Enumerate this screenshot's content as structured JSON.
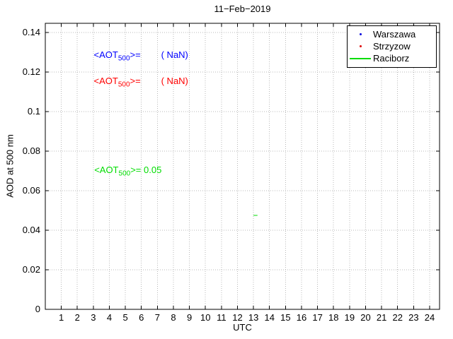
{
  "chart_data": {
    "type": "scatter",
    "title": "11−Feb−2019",
    "xlabel": "UTC",
    "ylabel": "AOD at 500 nm",
    "xlim": [
      0,
      24.62
    ],
    "ylim": [
      0,
      0.1446
    ],
    "grid": true,
    "legend_position": "top-right",
    "xticks": [
      1,
      2,
      3,
      4,
      5,
      6,
      7,
      8,
      9,
      10,
      11,
      12,
      13,
      14,
      15,
      16,
      17,
      18,
      19,
      20,
      21,
      22,
      23,
      24
    ],
    "xtick_labels": [
      "1",
      "2",
      "3",
      "4",
      "5",
      "6",
      "7",
      "8",
      "9",
      "10",
      "11",
      "12",
      "13",
      "14",
      "15",
      "16",
      "17",
      "18",
      "19",
      "20",
      "21",
      "22",
      "23",
      "24"
    ],
    "yticks": [
      0,
      0.02,
      0.04,
      0.06,
      0.08,
      0.1,
      0.12,
      0.14
    ],
    "ytick_labels": [
      "0",
      "0.02",
      "0.04",
      "0.06",
      "0.08",
      "0.1",
      "0.12",
      "0.14"
    ],
    "series": [
      {
        "name": "Warszawa",
        "color": "#0000dd",
        "marker": "dot",
        "mean_aot500": "( NaN)",
        "points": []
      },
      {
        "name": "Strzyzow",
        "color": "#dd0000",
        "marker": "dot",
        "mean_aot500": "( NaN)",
        "points": []
      },
      {
        "name": "Raciborz",
        "color": "#00dd00",
        "marker": "line",
        "mean_aot500": "0.05",
        "points": [
          [
            13.0,
            0.0475
          ],
          [
            13.25,
            0.0475
          ]
        ]
      }
    ],
    "annotations": [
      {
        "pre": "<AOT",
        "sub": "500",
        "post": ">=        ( NaN)",
        "color": "#0000ff",
        "x": 2.39,
        "y": 0.133
      },
      {
        "pre": "<AOT",
        "sub": "500",
        "post": ">=        ( NaN)",
        "color": "#ff0000",
        "x": 2.39,
        "y": 0.12
      },
      {
        "pre": "<AOT",
        "sub": "500",
        "post": ">= 0.05",
        "color": "#00dd00",
        "x": 2.42,
        "y": 0.075
      }
    ]
  }
}
